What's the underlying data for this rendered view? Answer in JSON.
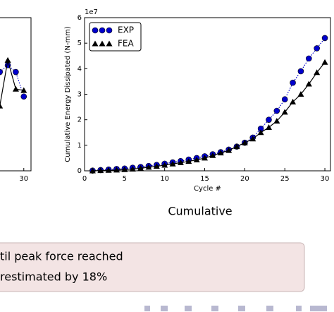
{
  "chart_data": [
    {
      "type": "line",
      "x": [
        27,
        28,
        29,
        30
      ],
      "xlim": [
        0,
        30.9
      ],
      "ylim": [
        0,
        6
      ],
      "xticks": [
        30
      ],
      "series": [
        {
          "color": "#0000cc",
          "marker": "circle",
          "linestyle": "dotted",
          "values": [
            3.87,
            4.14,
            3.87,
            2.91
          ]
        },
        {
          "color": "#000000",
          "marker": "triangle",
          "linestyle": "solid",
          "values": [
            2.54,
            4.33,
            3.2,
            3.15
          ]
        }
      ]
    },
    {
      "type": "line",
      "xlabel": "Cycle #",
      "ylabel": "Cumulative Energy Dissipated (N-mm)",
      "offset_label": "1e7",
      "x": [
        1,
        2,
        3,
        4,
        5,
        6,
        7,
        8,
        9,
        10,
        11,
        12,
        13,
        14,
        15,
        16,
        17,
        18,
        19,
        20,
        21,
        22,
        23,
        24,
        25,
        26,
        27,
        28,
        29,
        30
      ],
      "xlim": [
        0,
        30.7
      ],
      "ylim": [
        0,
        6
      ],
      "xticks": [
        0,
        5,
        10,
        15,
        20,
        25,
        30
      ],
      "yticks": [
        0,
        1,
        2,
        3,
        4,
        5,
        6
      ],
      "legend": "upper left",
      "series": [
        {
          "name": "EXP",
          "color": "#0000cc",
          "marker": "circle",
          "linestyle": "dotted",
          "values": [
            0.01,
            0.03,
            0.05,
            0.07,
            0.09,
            0.12,
            0.15,
            0.19,
            0.23,
            0.28,
            0.33,
            0.38,
            0.44,
            0.5,
            0.57,
            0.65,
            0.73,
            0.83,
            0.95,
            1.1,
            1.3,
            1.65,
            2.0,
            2.35,
            2.8,
            3.45,
            3.9,
            4.4,
            4.8,
            5.2
          ]
        },
        {
          "name": "FEA",
          "color": "#000000",
          "marker": "triangle",
          "linestyle": "solid",
          "values": [
            0.0,
            0.01,
            0.02,
            0.03,
            0.05,
            0.07,
            0.1,
            0.14,
            0.18,
            0.22,
            0.27,
            0.32,
            0.37,
            0.43,
            0.5,
            0.6,
            0.7,
            0.8,
            0.95,
            1.1,
            1.25,
            1.5,
            1.7,
            1.95,
            2.3,
            2.7,
            3.0,
            3.4,
            3.85,
            4.25
          ]
        }
      ]
    }
  ],
  "caption": "Cumulative",
  "callout": {
    "lines": [
      "til peak force reached",
      "restimated by 18%"
    ]
  }
}
